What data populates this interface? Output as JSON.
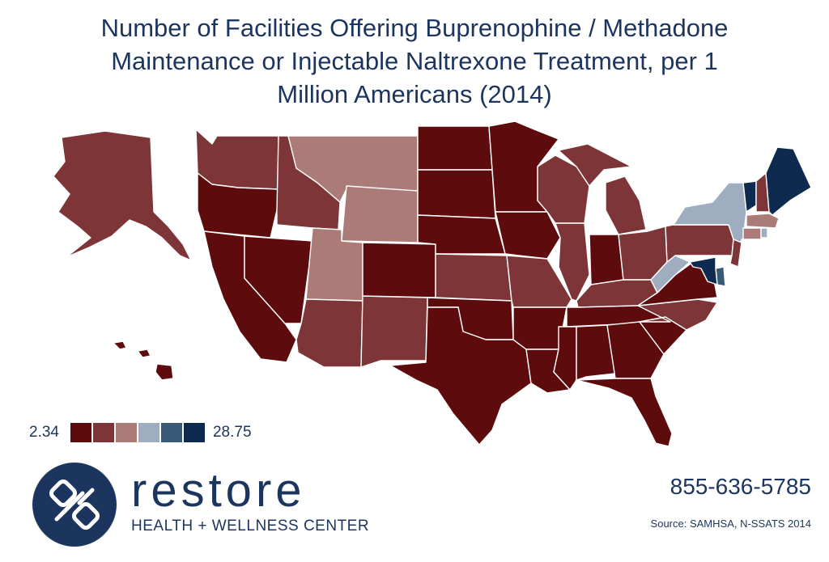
{
  "title_lines": [
    "Number of Facilities Offering Buprenophine / Methadone",
    "Maintenance or Injectable Naltrexone Treatment, per 1",
    "Million Americans (2014)"
  ],
  "legend": {
    "min_label": "2.34",
    "max_label": "28.75",
    "colors": [
      "#5e0b0e",
      "#7e3537",
      "#ab7b78",
      "#9eaeC0",
      "#385a78",
      "#0e2a4e"
    ]
  },
  "map": {
    "color_classes": {
      "c0": "#5e0b0e",
      "c1": "#7e3537",
      "c2": "#ab7b78",
      "c3": "#9eaec0",
      "c4": "#385a78",
      "c5": "#0e2a4e"
    },
    "state_class": {
      "AK": 1,
      "HI": 0,
      "WA": 1,
      "OR": 0,
      "CA": 0,
      "NV": 0,
      "ID": 1,
      "MT": 2,
      "WY": 2,
      "UT": 2,
      "AZ": 1,
      "NM": 1,
      "CO": 0,
      "ND": 0,
      "SD": 0,
      "NE": 0,
      "KS": 1,
      "OK": 0,
      "TX": 0,
      "MN": 0,
      "IA": 0,
      "MO": 1,
      "AR": 0,
      "LA": 0,
      "WI": 1,
      "IL": 1,
      "MI": 1,
      "IN": 0,
      "OH": 1,
      "KY": 1,
      "TN": 0,
      "MS": 0,
      "AL": 0,
      "GA": 0,
      "FL": 0,
      "SC": 0,
      "NC": 1,
      "VA": 0,
      "WV": 3,
      "PA": 1,
      "NY": 3,
      "VT": 5,
      "NH": 1,
      "ME": 5,
      "MA": 2,
      "CT": 2,
      "RI": 3,
      "NJ": 1,
      "DE": 4,
      "MD": 5
    }
  },
  "brand": {
    "name": "restore",
    "subtitle": "HEALTH + WELLNESS CENTER",
    "logo_color": "#1c355e"
  },
  "phone": "855-636-5785",
  "source": "Source: SAMHSA, N-SSATS 2014"
}
